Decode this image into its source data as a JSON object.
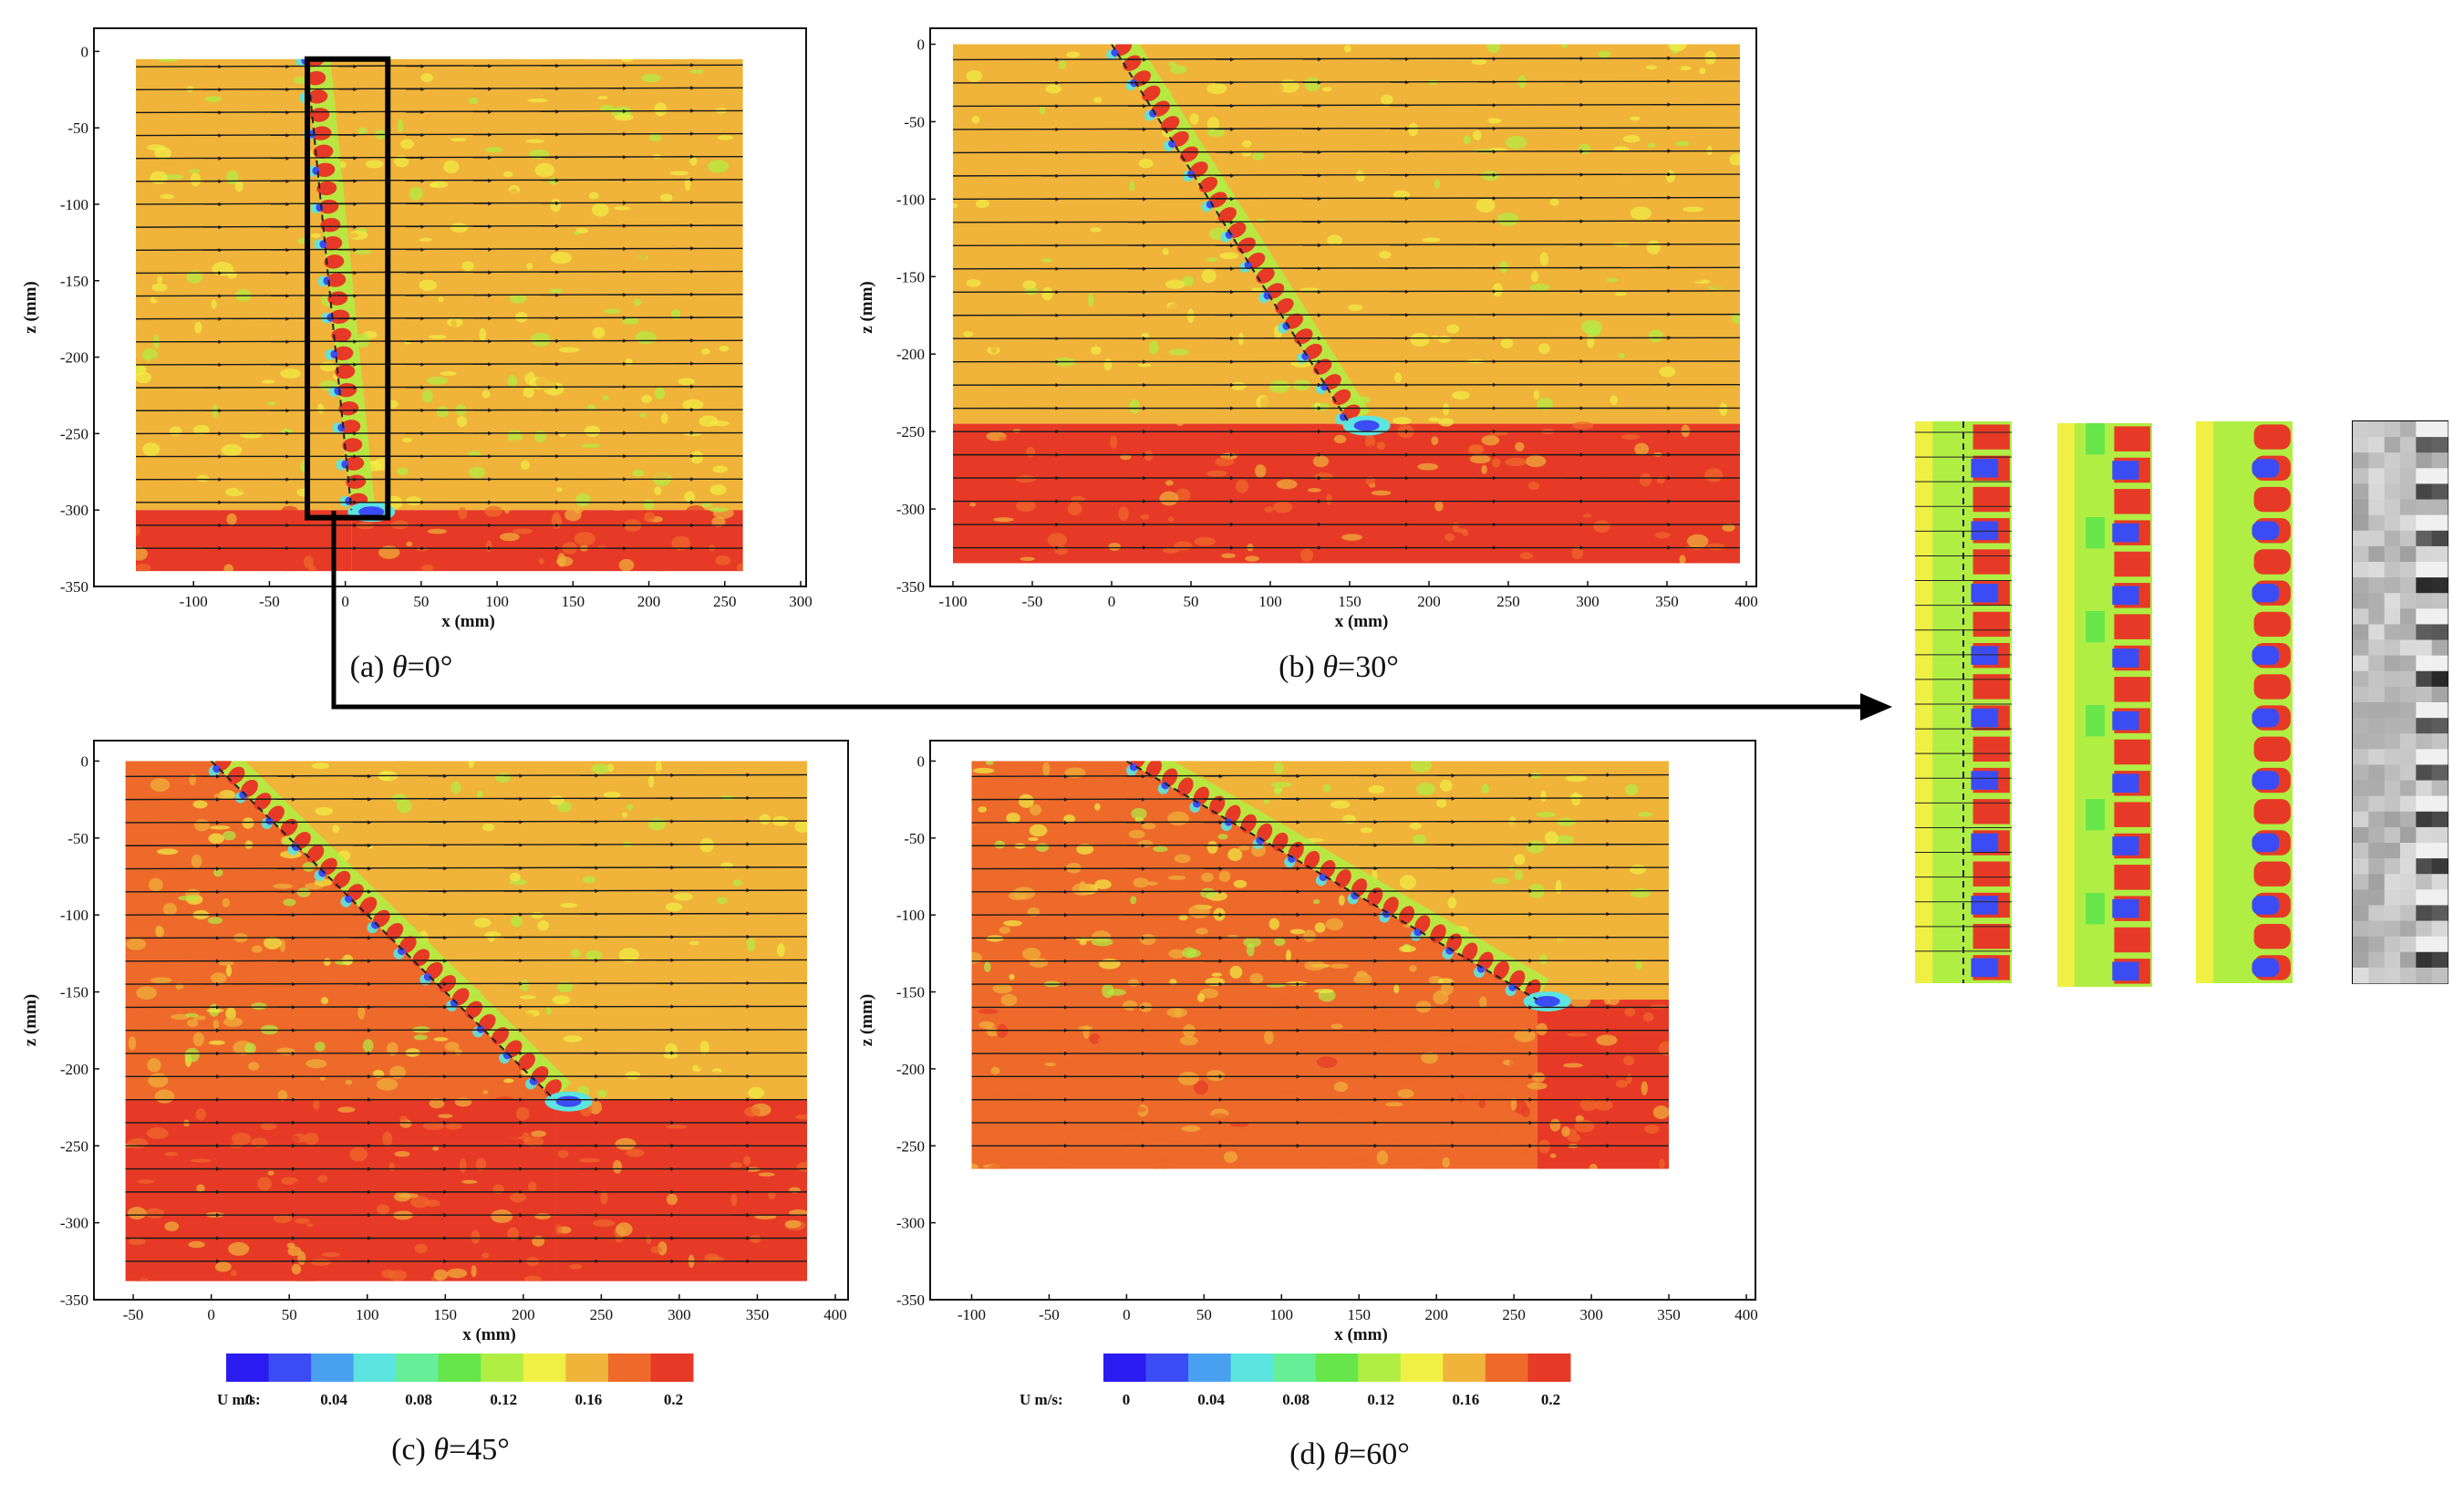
{
  "figure": {
    "colors": {
      "colormap": [
        "#2a1cf0",
        "#3c4cf4",
        "#4aa0f0",
        "#5ce4e0",
        "#66ee99",
        "#66e64a",
        "#b0ee44",
        "#f0f044",
        "#f0b43a",
        "#ee6a2a",
        "#e63a26"
      ],
      "streamline": "#1a1a1a",
      "frame": "#111111",
      "highlight_box": "#000000"
    }
  },
  "chart_data": [
    {
      "id": "a",
      "type": "heatmap",
      "caption_prefix": "(a) ",
      "caption_theta": "θ",
      "caption_value": "=0°",
      "xlabel": "x (mm)",
      "ylabel": "z (mm)",
      "xlim": [
        -150,
        300
      ],
      "ylim": [
        -350,
        5
      ],
      "xticks": [
        -100,
        -50,
        0,
        50,
        100,
        150,
        200,
        250,
        300
      ],
      "yticks": [
        0,
        -50,
        -100,
        -150,
        -200,
        -250,
        -300,
        -350
      ],
      "field_extent": {
        "x": [
          -138,
          262
        ],
        "z": [
          -340,
          -5
        ]
      },
      "screen": {
        "x_start": -26,
        "x_end": 4,
        "z_start": 0,
        "z_end": -300
      },
      "streamline_z": [
        -10,
        -25,
        -40,
        -55,
        -70,
        -85,
        -100,
        -115,
        -130,
        -145,
        -160,
        -175,
        -190,
        -205,
        -220,
        -235,
        -250,
        -265,
        -280,
        -295,
        -310,
        -325
      ],
      "highlight_box": {
        "x": [
          -25,
          28
        ],
        "z": [
          -305,
          -5
        ]
      },
      "velocity_field": {
        "upstream_upper": 0.16,
        "upstream_lower": 0.19,
        "downstream_upper": 0.15,
        "downstream_lower": 0.19,
        "screen_gaps": 0.2,
        "screen_blockage": 0.02,
        "tip_vortex": 0.01
      }
    },
    {
      "id": "b",
      "type": "heatmap",
      "caption_prefix": "(b) ",
      "caption_theta": "θ",
      "caption_value": "=30°",
      "xlabel": "x (mm)",
      "ylabel": "z (mm)",
      "xlim": [
        -100,
        400
      ],
      "ylim": [
        -350,
        5
      ],
      "xticks": [
        -100,
        -50,
        0,
        50,
        100,
        150,
        200,
        250,
        300,
        350,
        400
      ],
      "yticks": [
        0,
        -50,
        -100,
        -150,
        -200,
        -250,
        -300,
        -350
      ],
      "field_extent": {
        "x": [
          -100,
          396
        ],
        "z": [
          -335,
          0
        ]
      },
      "screen": {
        "x_start": 0,
        "x_end": 150,
        "z_start": 0,
        "z_end": -245
      },
      "streamline_z": [
        -10,
        -25,
        -40,
        -55,
        -70,
        -85,
        -100,
        -115,
        -130,
        -145,
        -160,
        -175,
        -190,
        -205,
        -220,
        -235,
        -250,
        -265,
        -280,
        -295,
        -310,
        -325
      ],
      "velocity_field": {
        "upstream_upper": 0.16,
        "upstream_lower": 0.19,
        "downstream_upper": 0.15,
        "downstream_lower": 0.2,
        "screen_gaps": 0.2,
        "screen_blockage": 0.02,
        "tip_vortex": 0.01
      }
    },
    {
      "id": "c",
      "type": "heatmap",
      "caption_prefix": "(c) ",
      "caption_theta": "θ",
      "caption_value": "=45°",
      "xlabel": "x (mm)",
      "ylabel": "z (mm)",
      "xlim": [
        -60,
        400
      ],
      "ylim": [
        -350,
        5
      ],
      "xticks": [
        -50,
        0,
        50,
        100,
        150,
        200,
        250,
        300,
        350,
        400
      ],
      "yticks": [
        0,
        -50,
        -100,
        -150,
        -200,
        -250,
        -300,
        -350
      ],
      "field_extent": {
        "x": [
          -55,
          382
        ],
        "z": [
          -338,
          0
        ]
      },
      "screen": {
        "x_start": 0,
        "x_end": 220,
        "z_start": 0,
        "z_end": -220
      },
      "streamline_z": [
        -10,
        -25,
        -40,
        -55,
        -70,
        -85,
        -100,
        -115,
        -130,
        -145,
        -160,
        -175,
        -190,
        -205,
        -220,
        -235,
        -250,
        -265,
        -280,
        -295,
        -310,
        -325
      ],
      "velocity_field": {
        "upstream_upper": 0.17,
        "upstream_lower": 0.19,
        "downstream_upper": 0.15,
        "downstream_lower": 0.2,
        "screen_gaps": 0.2,
        "screen_blockage": 0.02,
        "tip_vortex": 0.01
      },
      "colorbar": {
        "label": "U m/s:",
        "levels": [
          0,
          0.02,
          0.04,
          0.06,
          0.08,
          0.1,
          0.12,
          0.14,
          0.16,
          0.18,
          0.2
        ],
        "tick_labels": [
          "0",
          "0.04",
          "0.08",
          "0.12",
          "0.16",
          "0.2"
        ]
      }
    },
    {
      "id": "d",
      "type": "heatmap",
      "caption_prefix": "(d) ",
      "caption_theta": "θ",
      "caption_value": "=60°",
      "xlabel": "x (mm)",
      "ylabel": "z (mm)",
      "xlim": [
        -115,
        400
      ],
      "ylim": [
        -350,
        5
      ],
      "xticks": [
        -100,
        -50,
        0,
        50,
        100,
        150,
        200,
        250,
        300,
        350,
        400
      ],
      "yticks": [
        0,
        -50,
        -100,
        -150,
        -200,
        -250,
        -300,
        -350
      ],
      "field_extent": {
        "x": [
          -100,
          350
        ],
        "z": [
          -265,
          0
        ]
      },
      "screen": {
        "x_start": 0,
        "x_end": 265,
        "z_start": 0,
        "z_end": -155
      },
      "streamline_z": [
        -10,
        -25,
        -40,
        -55,
        -70,
        -85,
        -100,
        -115,
        -130,
        -145,
        -160,
        -175,
        -190,
        -205,
        -220,
        -235,
        -250
      ],
      "velocity_field": {
        "upstream_upper": 0.17,
        "upstream_lower": 0.18,
        "downstream_upper": 0.16,
        "downstream_lower": 0.19,
        "screen_gaps": 0.2,
        "screen_blockage": 0.02,
        "tip_vortex": 0.01
      },
      "colorbar": {
        "label": "U m/s:",
        "levels": [
          0,
          0.02,
          0.04,
          0.06,
          0.08,
          0.1,
          0.12,
          0.14,
          0.16,
          0.18,
          0.2
        ],
        "tick_labels": [
          "0",
          "0.04",
          "0.08",
          "0.12",
          "0.16",
          "0.2"
        ]
      }
    },
    {
      "id": "zoom",
      "type": "heatmap",
      "description_role": "enlarged strips of the boxed region in (a)",
      "strip_count": 4,
      "strip_styles": [
        "contour-with-streamlines",
        "coarse-color",
        "smoothed-color",
        "grayscale"
      ]
    }
  ]
}
